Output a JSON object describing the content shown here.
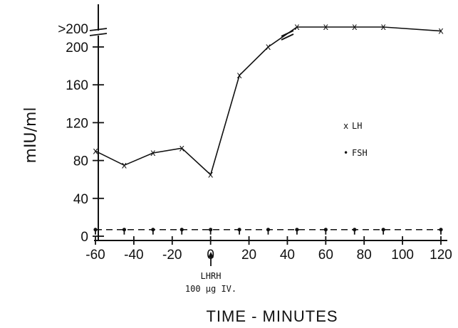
{
  "chart_data": {
    "type": "line",
    "xlabel": "TIME - MINUTES",
    "ylabel": "mIU/ml",
    "xlim": [
      -60,
      120
    ],
    "ylim": [
      0,
      240
    ],
    "x_ticks": [
      "-60",
      "-40",
      "-20",
      "0",
      "20",
      "40",
      "60",
      "80",
      "100",
      "120"
    ],
    "y_ticks": [
      "0",
      "40",
      "80",
      "120",
      "160",
      "200"
    ],
    "y_break_label": ">200",
    "annotation": {
      "x": 0,
      "lines": [
        "LHRH",
        "100 µg IV."
      ]
    },
    "series": [
      {
        "name": "LH",
        "marker": "x",
        "x": [
          -60,
          -45,
          -30,
          -15,
          0,
          15,
          30,
          45,
          60,
          75,
          90,
          120
        ],
        "y": [
          90,
          75,
          88,
          93,
          65,
          170,
          200,
          210,
          210,
          210,
          210,
          208
        ]
      },
      {
        "name": "FSH",
        "marker": "•",
        "x": [
          -60,
          -45,
          -30,
          -15,
          0,
          15,
          30,
          45,
          60,
          75,
          90,
          120
        ],
        "y": [
          7,
          7,
          7,
          7,
          7,
          7,
          7,
          7,
          7,
          7,
          7,
          7
        ]
      }
    ]
  }
}
